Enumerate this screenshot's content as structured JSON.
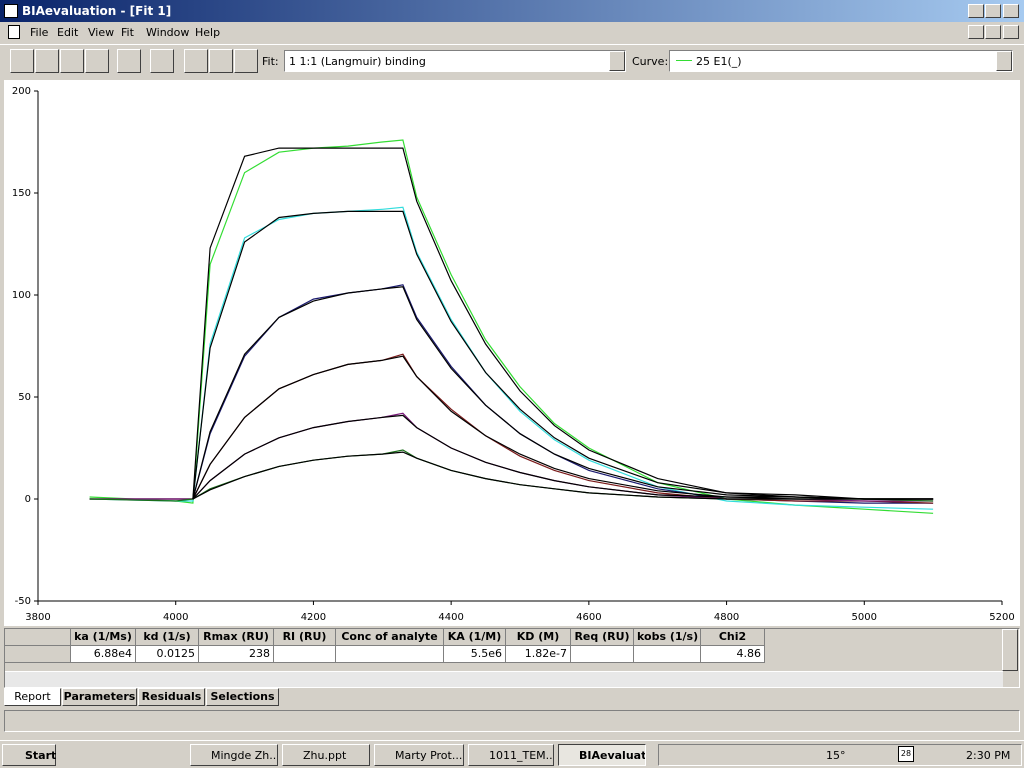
{
  "window": {
    "title": "BIAevaluation - [Fit  1]",
    "menu": [
      "File",
      "Edit",
      "View",
      "Fit",
      "Window",
      "Help"
    ]
  },
  "toolbar": {
    "fit_label": "Fit:",
    "fit_value": "1 1:1 (Langmuir) binding",
    "curve_label": "Curve:",
    "curve_value": "25 E1(_)"
  },
  "chart_data": {
    "type": "line",
    "x": [
      3875,
      4000,
      4025,
      4050,
      4100,
      4150,
      4200,
      4250,
      4300,
      4330,
      4350,
      4400,
      4450,
      4500,
      4550,
      4600,
      4700,
      4800,
      4900,
      5000,
      5100
    ],
    "xlim": [
      3800,
      5200
    ],
    "xticks": [
      3800,
      4000,
      4200,
      4400,
      4600,
      4800,
      5000,
      5200
    ],
    "ylim": [
      -50,
      200
    ],
    "yticks": [
      -50,
      0,
      50,
      100,
      150,
      200
    ],
    "series": [
      {
        "color": "#33dd33",
        "values": [
          1,
          -1,
          -2,
          115,
          160,
          170,
          172,
          173,
          175,
          176,
          148,
          110,
          78,
          55,
          37,
          25,
          8,
          0,
          -3,
          -5,
          -7
        ]
      },
      {
        "color": "#33dddd",
        "values": [
          0,
          -1,
          -1,
          76,
          128,
          137,
          140,
          141,
          142,
          143,
          121,
          88,
          62,
          43,
          29,
          19,
          6,
          -1,
          -3,
          -4,
          -5
        ]
      },
      {
        "color": "#1a1a6e",
        "values": [
          0,
          0,
          0,
          32,
          70,
          89,
          98,
          101,
          103,
          105,
          89,
          65,
          46,
          32,
          22,
          14,
          5,
          0,
          -1,
          -2,
          -2
        ]
      },
      {
        "color": "#7a1a1a",
        "values": [
          0,
          0,
          0,
          17,
          40,
          54,
          61,
          66,
          68,
          71,
          60,
          44,
          31,
          21,
          14,
          9,
          3,
          0,
          -1,
          -1,
          -2
        ]
      },
      {
        "color": "#7a1a7a",
        "values": [
          0,
          0,
          0,
          9,
          22,
          30,
          35,
          38,
          40,
          42,
          35,
          25,
          18,
          13,
          9,
          6,
          2,
          0,
          0,
          -1,
          -1
        ]
      },
      {
        "color": "#1a6e1a",
        "values": [
          0,
          -1,
          0,
          5,
          11,
          16,
          19,
          21,
          22,
          24,
          20,
          14,
          10,
          7,
          5,
          3,
          1,
          0,
          0,
          0,
          -1
        ]
      },
      {
        "color": "#000000",
        "values": [
          null,
          null,
          0,
          123,
          168,
          172,
          172,
          172,
          172,
          172,
          146,
          107,
          76,
          53,
          36,
          24,
          10,
          3,
          2,
          0,
          0
        ]
      },
      {
        "color": "#000000",
        "values": [
          null,
          null,
          0,
          74,
          126,
          138,
          140,
          141,
          141,
          141,
          120,
          87,
          62,
          44,
          30,
          20,
          8,
          3,
          1,
          0,
          0
        ]
      },
      {
        "color": "#000000",
        "values": [
          null,
          null,
          0,
          33,
          71,
          89,
          97,
          101,
          103,
          104,
          88,
          64,
          46,
          32,
          22,
          15,
          6,
          2,
          1,
          0,
          0
        ]
      },
      {
        "color": "#000000",
        "values": [
          null,
          null,
          0,
          17,
          40,
          54,
          61,
          66,
          68,
          70,
          60,
          43,
          31,
          22,
          15,
          10,
          4,
          1,
          1,
          0,
          0
        ]
      },
      {
        "color": "#000000",
        "values": [
          null,
          null,
          0,
          9,
          22,
          30,
          35,
          38,
          40,
          41,
          35,
          25,
          18,
          13,
          9,
          6,
          2,
          1,
          0,
          0,
          0
        ]
      },
      {
        "color": "#000000",
        "values": [
          null,
          null,
          0,
          4.5,
          11,
          16,
          19,
          21,
          22,
          23,
          20,
          14,
          10,
          7,
          5,
          3,
          1,
          0,
          0,
          0,
          0
        ]
      }
    ]
  },
  "table": {
    "headers": [
      "ka (1/Ms)",
      "kd (1/s)",
      "Rmax (RU)",
      "RI (RU)",
      "Conc of analyte",
      "KA (1/M)",
      "KD (M)",
      "Req (RU)",
      "kobs (1/s)",
      "Chi2"
    ],
    "row": {
      "0": "6.88e4",
      "1": "0.0125",
      "2": "238",
      "5": "5.5e6",
      "6": "1.82e-7",
      "9": "4.86"
    }
  },
  "tabs": [
    "Report",
    "Parameters",
    "Residuals",
    "Selections"
  ],
  "taskbar": {
    "start": "Start",
    "items": [
      "Mingde Zh...",
      "Zhu.ppt",
      "Marty Prot...",
      "1011_TEM...",
      "BIAevaluati..."
    ],
    "temperature": "15°",
    "date_icon": "28",
    "clock": "2:30 PM"
  }
}
